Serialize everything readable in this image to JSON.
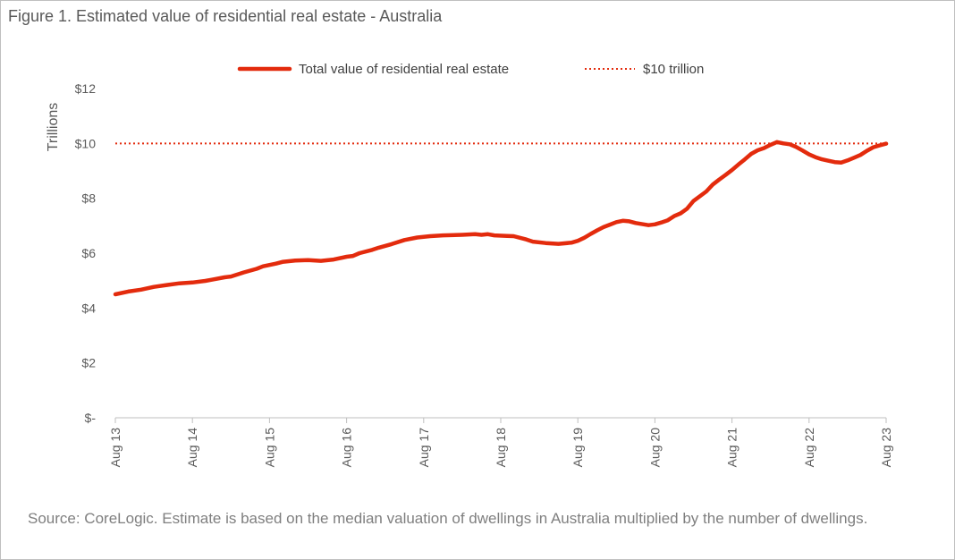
{
  "figure_title": "Figure 1. Estimated value of residential real estate - Australia",
  "source_note": "Source: CoreLogic. Estimate is based on the median valuation of dwellings in Australia multiplied by the number of dwellings.",
  "colors": {
    "series": "#e32b0d",
    "reference": "#e32b0d",
    "axis": "#bfbfbf",
    "text": "#595959"
  },
  "chart_data": {
    "type": "line",
    "title": "",
    "xlabel": "",
    "ylabel": "Trillions",
    "ylim": [
      0,
      12
    ],
    "xlim": [
      0,
      120
    ],
    "grid": false,
    "legend": "top",
    "y_ticks": [
      {
        "value": 0,
        "label": "$-"
      },
      {
        "value": 2,
        "label": "$2"
      },
      {
        "value": 4,
        "label": "$4"
      },
      {
        "value": 6,
        "label": "$6"
      },
      {
        "value": 8,
        "label": "$8"
      },
      {
        "value": 10,
        "label": "$10"
      },
      {
        "value": 12,
        "label": "$12"
      }
    ],
    "x_ticks": [
      {
        "value": 0,
        "label": "Aug 13"
      },
      {
        "value": 12,
        "label": "Aug 14"
      },
      {
        "value": 24,
        "label": "Aug 15"
      },
      {
        "value": 36,
        "label": "Aug 16"
      },
      {
        "value": 48,
        "label": "Aug 17"
      },
      {
        "value": 60,
        "label": "Aug 18"
      },
      {
        "value": 72,
        "label": "Aug 19"
      },
      {
        "value": 84,
        "label": "Aug 20"
      },
      {
        "value": 96,
        "label": "Aug 21"
      },
      {
        "value": 108,
        "label": "Aug 22"
      },
      {
        "value": 120,
        "label": "Aug 23"
      }
    ],
    "series": [
      {
        "name": "Total value of residential real estate",
        "points": [
          [
            0,
            4.5
          ],
          [
            2,
            4.6
          ],
          [
            4,
            4.67
          ],
          [
            6,
            4.77
          ],
          [
            8,
            4.84
          ],
          [
            10,
            4.9
          ],
          [
            12,
            4.93
          ],
          [
            14,
            4.99
          ],
          [
            15,
            5.03
          ],
          [
            17,
            5.12
          ],
          [
            18,
            5.15
          ],
          [
            20,
            5.3
          ],
          [
            22,
            5.43
          ],
          [
            23,
            5.52
          ],
          [
            24,
            5.57
          ],
          [
            25,
            5.62
          ],
          [
            26,
            5.68
          ],
          [
            28,
            5.73
          ],
          [
            30,
            5.75
          ],
          [
            32,
            5.72
          ],
          [
            34,
            5.77
          ],
          [
            36,
            5.87
          ],
          [
            37,
            5.9
          ],
          [
            38,
            6.0
          ],
          [
            40,
            6.12
          ],
          [
            41,
            6.2
          ],
          [
            43,
            6.33
          ],
          [
            45,
            6.48
          ],
          [
            47,
            6.57
          ],
          [
            49,
            6.62
          ],
          [
            51,
            6.65
          ],
          [
            54,
            6.67
          ],
          [
            56,
            6.69
          ],
          [
            57,
            6.67
          ],
          [
            58,
            6.69
          ],
          [
            59,
            6.65
          ],
          [
            61,
            6.63
          ],
          [
            62,
            6.62
          ],
          [
            64,
            6.5
          ],
          [
            65,
            6.42
          ],
          [
            67,
            6.37
          ],
          [
            69,
            6.34
          ],
          [
            71,
            6.38
          ],
          [
            72,
            6.45
          ],
          [
            73,
            6.56
          ],
          [
            74,
            6.7
          ],
          [
            75,
            6.83
          ],
          [
            76,
            6.95
          ],
          [
            77,
            7.04
          ],
          [
            78,
            7.13
          ],
          [
            79,
            7.18
          ],
          [
            80,
            7.16
          ],
          [
            81,
            7.1
          ],
          [
            83,
            7.02
          ],
          [
            84,
            7.05
          ],
          [
            85,
            7.12
          ],
          [
            86,
            7.2
          ],
          [
            87,
            7.35
          ],
          [
            88,
            7.45
          ],
          [
            89,
            7.62
          ],
          [
            90,
            7.9
          ],
          [
            92,
            8.25
          ],
          [
            93,
            8.5
          ],
          [
            94,
            8.68
          ],
          [
            95,
            8.85
          ],
          [
            96,
            9.03
          ],
          [
            97,
            9.23
          ],
          [
            98,
            9.42
          ],
          [
            99,
            9.62
          ],
          [
            100,
            9.75
          ],
          [
            101,
            9.83
          ],
          [
            102,
            9.95
          ],
          [
            103,
            10.05
          ],
          [
            104,
            10.0
          ],
          [
            105,
            9.97
          ],
          [
            106,
            9.87
          ],
          [
            107,
            9.74
          ],
          [
            108,
            9.6
          ],
          [
            109,
            9.5
          ],
          [
            110,
            9.42
          ],
          [
            111,
            9.37
          ],
          [
            112,
            9.32
          ],
          [
            113,
            9.3
          ],
          [
            114,
            9.38
          ],
          [
            115,
            9.48
          ],
          [
            116,
            9.58
          ],
          [
            117,
            9.73
          ],
          [
            118,
            9.86
          ],
          [
            119,
            9.93
          ],
          [
            120,
            9.99
          ]
        ]
      },
      {
        "name": "$10 trillion",
        "style": "dotted",
        "points": [
          [
            0,
            10
          ],
          [
            120,
            10
          ]
        ]
      }
    ]
  }
}
